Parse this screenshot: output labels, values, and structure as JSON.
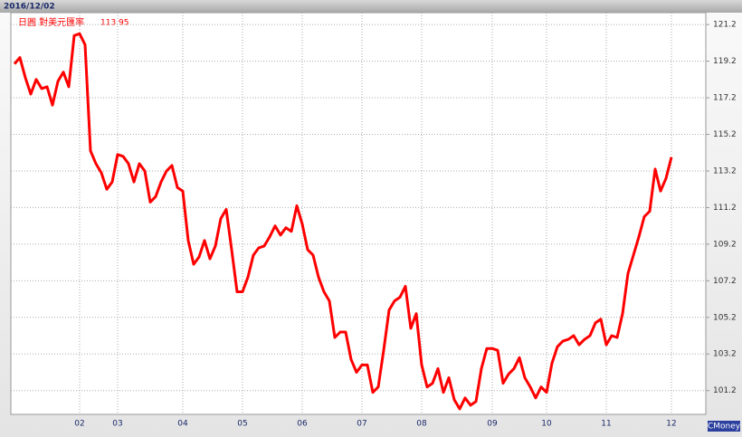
{
  "chart_data": {
    "type": "line",
    "date": "2016/12/02",
    "title": "日圓 對美元匯率",
    "watermark": "CMoney",
    "categories": [
      null,
      null,
      null,
      null,
      null,
      null,
      null,
      null,
      null,
      null,
      null,
      null,
      "02",
      null,
      null,
      null,
      null,
      null,
      null,
      "03",
      null,
      null,
      null,
      null,
      null,
      null,
      null,
      null,
      null,
      null,
      null,
      "04",
      null,
      null,
      null,
      null,
      null,
      null,
      null,
      null,
      null,
      null,
      "05",
      null,
      null,
      null,
      null,
      null,
      null,
      null,
      null,
      null,
      null,
      "06",
      null,
      null,
      null,
      null,
      null,
      null,
      null,
      null,
      null,
      null,
      "07",
      null,
      null,
      null,
      null,
      null,
      null,
      null,
      null,
      null,
      null,
      "08",
      null,
      null,
      null,
      null,
      null,
      null,
      null,
      null,
      null,
      null,
      null,
      null,
      "09",
      null,
      null,
      null,
      null,
      null,
      null,
      null,
      null,
      null,
      "10",
      null,
      null,
      null,
      null,
      null,
      null,
      null,
      null,
      null,
      null,
      "11",
      null,
      null,
      null,
      null,
      null,
      null,
      null,
      null,
      null,
      null,
      null,
      "12"
    ],
    "series": [
      {
        "color": "#ff0000",
        "values": [
          119.05,
          119.4,
          118.3,
          117.4,
          118.2,
          117.7,
          117.8,
          116.8,
          118.1,
          118.6,
          117.8,
          120.6,
          120.7,
          120.1,
          114.3,
          113.6,
          113.1,
          112.2,
          112.6,
          114.1,
          114.0,
          113.6,
          112.6,
          113.6,
          113.2,
          111.5,
          111.8,
          112.6,
          113.2,
          113.5,
          112.3,
          112.1,
          109.4,
          108.1,
          108.5,
          109.4,
          108.4,
          109.1,
          110.6,
          111.1,
          108.9,
          106.6,
          106.6,
          107.4,
          108.6,
          109.0,
          109.1,
          109.6,
          110.2,
          109.7,
          110.1,
          109.9,
          111.3,
          110.3,
          108.9,
          108.6,
          107.4,
          106.6,
          106.1,
          104.1,
          104.4,
          104.4,
          102.9,
          102.2,
          102.6,
          102.6,
          101.1,
          101.4,
          103.4,
          105.6,
          106.1,
          106.3,
          106.9,
          104.6,
          105.4,
          102.6,
          101.4,
          101.6,
          102.4,
          101.1,
          101.9,
          100.7,
          100.2,
          100.8,
          100.4,
          100.6,
          102.4,
          103.5,
          103.5,
          103.4,
          101.6,
          102.1,
          102.4,
          103.0,
          101.9,
          101.4,
          100.8,
          101.4,
          101.1,
          102.7,
          103.6,
          103.9,
          104.0,
          104.2,
          103.7,
          104.0,
          104.2,
          104.9,
          105.1,
          103.7,
          104.2,
          104.1,
          105.4,
          107.6,
          108.6,
          109.6,
          110.7,
          111.0,
          113.3,
          112.1,
          112.8,
          113.95
        ]
      }
    ],
    "ylim": [
      99.9,
      121.85
    ],
    "yticks": [
      101.2,
      103.2,
      105.2,
      107.2,
      109.2,
      111.2,
      113.2,
      115.2,
      117.2,
      119.2,
      121.2
    ],
    "grid": true
  }
}
